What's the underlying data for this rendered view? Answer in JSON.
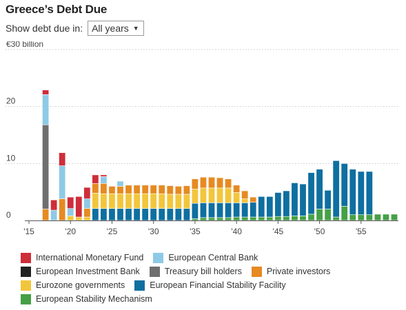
{
  "title": "Greece’s Debt Due",
  "control": {
    "label": "Show debt due in:",
    "selected": "All years",
    "arrow_icon": "triangle-down-icon"
  },
  "chart_data": {
    "type": "bar",
    "stacked": true,
    "title": "Greece’s Debt Due",
    "xlabel": "",
    "ylabel": "",
    "ylim": [
      0,
      30
    ],
    "yticks": [
      0,
      10,
      20,
      30
    ],
    "ytick_labels": [
      "0",
      "10",
      "20",
      "€30 billion"
    ],
    "xlim": [
      2015,
      2059
    ],
    "xticks": [
      2015,
      2020,
      2025,
      2030,
      2035,
      2040,
      2045,
      2050,
      2055
    ],
    "xtick_labels": [
      "'15",
      "'20",
      "'25",
      "'30",
      "'35",
      "'40",
      "'45",
      "'50",
      "'55"
    ],
    "grid": true,
    "legend_position": "bottom",
    "years": [
      2017,
      2018,
      2019,
      2020,
      2021,
      2022,
      2023,
      2024,
      2025,
      2026,
      2027,
      2028,
      2029,
      2030,
      2031,
      2032,
      2033,
      2034,
      2035,
      2036,
      2037,
      2038,
      2039,
      2040,
      2041,
      2042,
      2043,
      2044,
      2045,
      2046,
      2047,
      2048,
      2049,
      2050,
      2051,
      2052,
      2053,
      2054,
      2055,
      2056,
      2057,
      2058,
      2059
    ],
    "series": [
      {
        "name": "European Stability Mechanism",
        "color": "#46a046",
        "values": [
          0,
          0,
          0,
          0,
          0,
          0,
          0,
          0,
          0,
          0,
          0,
          0,
          0,
          0,
          0,
          0,
          0,
          0,
          0.3,
          0.5,
          0.5,
          0.5,
          0.5,
          0.6,
          0.6,
          0.6,
          0.6,
          0.6,
          0.7,
          0.7,
          0.8,
          0.8,
          1.1,
          2,
          2,
          0.6,
          2.5,
          1,
          1,
          1,
          1.1,
          1.1,
          1.1
        ]
      },
      {
        "name": "European Financial Stability Facility",
        "color": "#0e6fa0",
        "values": [
          0,
          0,
          0,
          0,
          0,
          0,
          2.1,
          2.1,
          2.1,
          2.1,
          2.1,
          2.1,
          2.1,
          2.1,
          2.1,
          2.1,
          2.1,
          2.1,
          2.7,
          2.6,
          2.6,
          2.6,
          2.6,
          2.5,
          2.5,
          2.6,
          3.6,
          3.6,
          4.2,
          4.5,
          5.8,
          5.6,
          7.3,
          7.0,
          3.3,
          9.9,
          7.5,
          8.0,
          7.6,
          7.6,
          0,
          0,
          0
        ]
      },
      {
        "name": "Eurozone governments",
        "color": "#f2c63c",
        "values": [
          0,
          0,
          0,
          0.8,
          0.6,
          0.6,
          2.7,
          2.6,
          2.6,
          2.6,
          2.6,
          2.6,
          2.6,
          2.6,
          2.6,
          2.5,
          2.5,
          2.5,
          2.5,
          2.6,
          2.6,
          2.6,
          2.6,
          1.8,
          0.7,
          0,
          0,
          0,
          0,
          0,
          0,
          0,
          0,
          0,
          0,
          0,
          0,
          0,
          0,
          0,
          0,
          0,
          0
        ]
      },
      {
        "name": "Private investors",
        "color": "#e68a22",
        "values": [
          2,
          0,
          3.8,
          0,
          0,
          1.5,
          1.7,
          1.8,
          1.3,
          1.3,
          1.5,
          1.5,
          1.5,
          1.5,
          1.5,
          1.5,
          1.4,
          1.5,
          1.8,
          1.9,
          1.9,
          1.8,
          1.6,
          1.3,
          1.4,
          0.9,
          0,
          0,
          0,
          0,
          0,
          0,
          0,
          0,
          0,
          0,
          0,
          0,
          0,
          0,
          0,
          0,
          0
        ]
      },
      {
        "name": "European Investment Bank",
        "color": "#222222",
        "values": [
          0,
          0,
          0,
          0,
          0,
          0,
          0,
          0,
          0,
          0,
          0,
          0,
          0,
          0,
          0,
          0,
          0,
          0,
          0,
          0,
          0,
          0,
          0,
          0,
          0,
          0,
          0,
          0,
          0,
          0,
          0,
          0,
          0,
          0,
          0,
          0,
          0,
          0,
          0,
          0,
          0,
          0,
          0
        ]
      },
      {
        "name": "Treasury bill holders",
        "color": "#6f6f6f",
        "values": [
          14.8,
          0,
          0,
          0,
          0,
          0,
          0,
          0,
          0,
          0,
          0,
          0,
          0,
          0,
          0,
          0,
          0,
          0,
          0,
          0,
          0,
          0,
          0,
          0,
          0,
          0,
          0,
          0,
          0,
          0,
          0,
          0,
          0,
          0,
          0,
          0,
          0,
          0,
          0,
          0,
          0,
          0,
          0
        ]
      },
      {
        "name": "European Central Bank",
        "color": "#8ecae6",
        "values": [
          5.3,
          1.8,
          5.8,
          1.3,
          0,
          1.7,
          0,
          1.2,
          0,
          0.9,
          0,
          0,
          0,
          0,
          0,
          0,
          0,
          0,
          0,
          0,
          0,
          0,
          0,
          0,
          0,
          0,
          0,
          0,
          0,
          0,
          0,
          0,
          0,
          0,
          0,
          0,
          0,
          0,
          0,
          0,
          0,
          0,
          0
        ]
      },
      {
        "name": "International Monetary Fund",
        "color": "#cf2d3a",
        "values": [
          0.8,
          1.8,
          2.3,
          2.0,
          3.6,
          2.0,
          1.5,
          0.3,
          0,
          0,
          0,
          0,
          0,
          0,
          0,
          0,
          0,
          0,
          0,
          0,
          0,
          0,
          0,
          0,
          0,
          0,
          0,
          0,
          0,
          0,
          0,
          0,
          0,
          0,
          0,
          0,
          0,
          0,
          0,
          0,
          0,
          0,
          0
        ]
      }
    ]
  },
  "legend": {
    "rows": [
      [
        "International Monetary Fund",
        "European Central Bank"
      ],
      [
        "European Investment Bank",
        "Treasury bill holders",
        "Private investors"
      ],
      [
        "Eurozone governments",
        "European Financial Stability Facility"
      ],
      [
        "European Stability Mechanism"
      ]
    ]
  }
}
